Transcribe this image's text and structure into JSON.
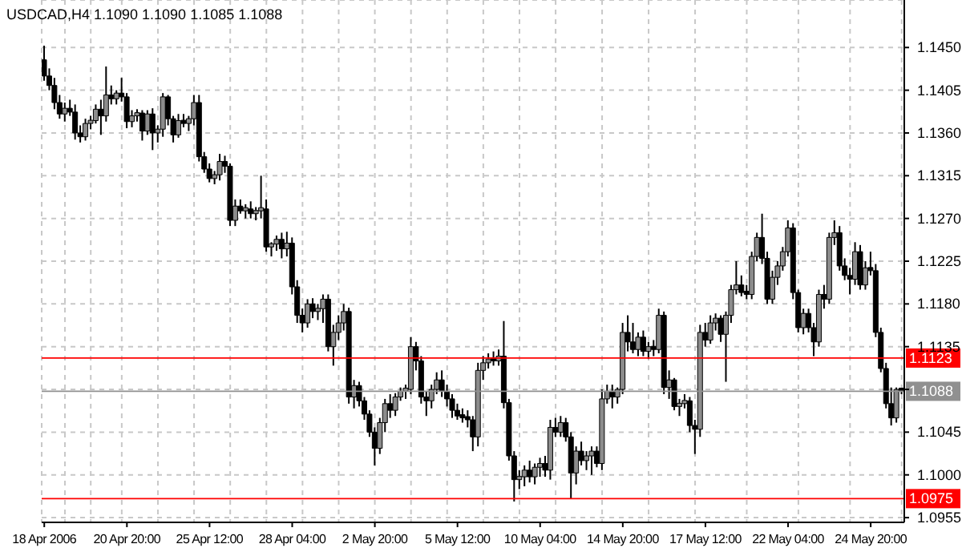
{
  "chart_data": {
    "type": "candlestick",
    "title": "USDCAD,H4 1.1090 1.1090 1.1085 1.1088",
    "categories": [
      "18 Apr 2006",
      null,
      null,
      null,
      null,
      null,
      null,
      null,
      null,
      null,
      null,
      null,
      null,
      null,
      null,
      null,
      "20 Apr 20:00",
      null,
      null,
      null,
      null,
      null,
      null,
      null,
      null,
      null,
      null,
      null,
      null,
      null,
      null,
      null,
      "25 Apr 12:00",
      null,
      null,
      null,
      null,
      null,
      null,
      null,
      null,
      null,
      null,
      null,
      null,
      null,
      null,
      null,
      "28 Apr 04:00",
      null,
      null,
      null,
      null,
      null,
      null,
      null,
      null,
      null,
      null,
      null,
      null,
      null,
      null,
      null,
      "2 May 20:00",
      null,
      null,
      null,
      null,
      null,
      null,
      null,
      null,
      null,
      null,
      null,
      null,
      null,
      null,
      null,
      "5 May 12:00",
      null,
      null,
      null,
      null,
      null,
      null,
      null,
      null,
      null,
      null,
      null,
      null,
      null,
      null,
      null,
      "10 May 04:00",
      null,
      null,
      null,
      null,
      null,
      null,
      null,
      null,
      null,
      null,
      null,
      null,
      null,
      null,
      null,
      "14 May 20:00",
      null,
      null,
      null,
      null,
      null,
      null,
      null,
      null,
      null,
      null,
      null,
      null,
      null,
      null,
      null,
      "17 May 12:00",
      null,
      null,
      null,
      null,
      null,
      null,
      null,
      null,
      null,
      null,
      null,
      null,
      null,
      null,
      null,
      "22 May 04:00",
      null,
      null,
      null,
      null,
      null,
      null,
      null,
      null,
      null,
      null,
      null,
      null,
      null,
      null,
      null,
      "24 May 20:00",
      null,
      null,
      null,
      null,
      null,
      null
    ],
    "ohlc": [
      [
        1.1437,
        1.1452,
        1.1415,
        1.142
      ],
      [
        1.142,
        1.1428,
        1.1405,
        1.141
      ],
      [
        1.141,
        1.1418,
        1.1385,
        1.1392
      ],
      [
        1.1392,
        1.14,
        1.1375,
        1.138
      ],
      [
        1.138,
        1.1392,
        1.1372,
        1.1386
      ],
      [
        1.1386,
        1.1395,
        1.1378,
        1.1382
      ],
      [
        1.1382,
        1.139,
        1.1353,
        1.136
      ],
      [
        1.136,
        1.1368,
        1.135,
        1.1356
      ],
      [
        1.1356,
        1.1375,
        1.1352,
        1.137
      ],
      [
        1.137,
        1.1378,
        1.1364,
        1.1373
      ],
      [
        1.1373,
        1.139,
        1.137,
        1.1385
      ],
      [
        1.1385,
        1.1395,
        1.1358,
        1.1378
      ],
      [
        1.1378,
        1.143,
        1.1372,
        1.14
      ],
      [
        1.14,
        1.141,
        1.139,
        1.1396
      ],
      [
        1.1396,
        1.1405,
        1.139,
        1.1402
      ],
      [
        1.1402,
        1.1418,
        1.1393,
        1.1398
      ],
      [
        1.1398,
        1.1402,
        1.1365,
        1.1372
      ],
      [
        1.1372,
        1.1384,
        1.1366,
        1.1378
      ],
      [
        1.1378,
        1.1385,
        1.1372,
        1.1381
      ],
      [
        1.1381,
        1.1384,
        1.1352,
        1.1362
      ],
      [
        1.1362,
        1.1384,
        1.1358,
        1.138
      ],
      [
        1.138,
        1.1386,
        1.1342,
        1.136
      ],
      [
        1.136,
        1.1368,
        1.135,
        1.1364
      ],
      [
        1.1364,
        1.1402,
        1.1356,
        1.1398
      ],
      [
        1.1398,
        1.14,
        1.1368,
        1.1375
      ],
      [
        1.1375,
        1.1378,
        1.135,
        1.1358
      ],
      [
        1.1358,
        1.138,
        1.1355,
        1.1373
      ],
      [
        1.1373,
        1.138,
        1.1366,
        1.137
      ],
      [
        1.137,
        1.1378,
        1.1362,
        1.1375
      ],
      [
        1.1375,
        1.14,
        1.1368,
        1.1392
      ],
      [
        1.1392,
        1.14,
        1.133,
        1.1335
      ],
      [
        1.1335,
        1.134,
        1.1318,
        1.1322
      ],
      [
        1.1322,
        1.1328,
        1.1308,
        1.1312
      ],
      [
        1.1312,
        1.132,
        1.1306,
        1.1316
      ],
      [
        1.1316,
        1.1338,
        1.131,
        1.133
      ],
      [
        1.133,
        1.1336,
        1.1318,
        1.1325
      ],
      [
        1.1325,
        1.1328,
        1.1262,
        1.1268
      ],
      [
        1.1268,
        1.129,
        1.1262,
        1.1283
      ],
      [
        1.1283,
        1.129,
        1.1275,
        1.1278
      ],
      [
        1.1278,
        1.1285,
        1.127,
        1.128
      ],
      [
        1.128,
        1.1288,
        1.127,
        1.1275
      ],
      [
        1.1275,
        1.1282,
        1.1268,
        1.1278
      ],
      [
        1.1278,
        1.1315,
        1.127,
        1.128
      ],
      [
        1.128,
        1.129,
        1.1235,
        1.124
      ],
      [
        1.124,
        1.1245,
        1.123,
        1.1243
      ],
      [
        1.1243,
        1.1252,
        1.1236,
        1.1248
      ],
      [
        1.1248,
        1.1255,
        1.1228,
        1.1238
      ],
      [
        1.1238,
        1.1256,
        1.123,
        1.1244
      ],
      [
        1.1244,
        1.125,
        1.119,
        1.1198
      ],
      [
        1.1198,
        1.1205,
        1.116,
        1.1168
      ],
      [
        1.1168,
        1.1175,
        1.115,
        1.116
      ],
      [
        1.116,
        1.1185,
        1.1155,
        1.118
      ],
      [
        1.118,
        1.1186,
        1.1165,
        1.1172
      ],
      [
        1.1172,
        1.118,
        1.1163,
        1.1175
      ],
      [
        1.1175,
        1.119,
        1.116,
        1.1185
      ],
      [
        1.1185,
        1.119,
        1.113,
        1.1135
      ],
      [
        1.1135,
        1.1158,
        1.1115,
        1.115
      ],
      [
        1.115,
        1.1168,
        1.1142,
        1.116
      ],
      [
        1.116,
        1.118,
        1.1152,
        1.1172
      ],
      [
        1.1172,
        1.1176,
        1.1075,
        1.1082
      ],
      [
        1.1082,
        1.11,
        1.107,
        1.1094
      ],
      [
        1.1094,
        1.1098,
        1.1072,
        1.1078
      ],
      [
        1.1078,
        1.1082,
        1.1058,
        1.1064
      ],
      [
        1.1064,
        1.1068,
        1.104,
        1.1045
      ],
      [
        1.1045,
        1.105,
        1.101,
        1.1028
      ],
      [
        1.1028,
        1.106,
        1.1022,
        1.1055
      ],
      [
        1.1055,
        1.108,
        1.1045,
        1.1075
      ],
      [
        1.1075,
        1.1085,
        1.106,
        1.1068
      ],
      [
        1.1068,
        1.1086,
        1.1062,
        1.1082
      ],
      [
        1.1082,
        1.1092,
        1.1078,
        1.1088
      ],
      [
        1.1088,
        1.1095,
        1.108,
        1.109
      ],
      [
        1.109,
        1.1145,
        1.1085,
        1.1135
      ],
      [
        1.1135,
        1.114,
        1.111,
        1.112
      ],
      [
        1.112,
        1.1125,
        1.1075,
        1.1082
      ],
      [
        1.1082,
        1.1088,
        1.1062,
        1.1078
      ],
      [
        1.1078,
        1.1095,
        1.107,
        1.109
      ],
      [
        1.109,
        1.1108,
        1.1085,
        1.11
      ],
      [
        1.11,
        1.111,
        1.1082,
        1.1088
      ],
      [
        1.1088,
        1.1095,
        1.1072,
        1.108
      ],
      [
        1.108,
        1.1085,
        1.106,
        1.1068
      ],
      [
        1.1068,
        1.1075,
        1.1058,
        1.1062
      ],
      [
        1.1062,
        1.107,
        1.1055,
        1.106
      ],
      [
        1.106,
        1.1068,
        1.105,
        1.1058
      ],
      [
        1.1058,
        1.1062,
        1.1025,
        1.104
      ],
      [
        1.104,
        1.1118,
        1.103,
        1.111
      ],
      [
        1.111,
        1.1125,
        1.11,
        1.1118
      ],
      [
        1.1118,
        1.1128,
        1.1112,
        1.1122
      ],
      [
        1.1122,
        1.113,
        1.1115,
        1.112
      ],
      [
        1.112,
        1.1132,
        1.1115,
        1.1125
      ],
      [
        1.1125,
        1.1162,
        1.107,
        1.1076
      ],
      [
        1.1076,
        1.108,
        1.1015,
        1.102
      ],
      [
        1.102,
        1.1025,
        1.0972,
        1.0995
      ],
      [
        1.0995,
        1.1005,
        1.0985,
        1.0998
      ],
      [
        1.0998,
        1.101,
        1.0988,
        1.1005
      ],
      [
        1.1005,
        1.1015,
        1.0992,
        1.0998
      ],
      [
        1.0998,
        1.1012,
        1.099,
        1.1008
      ],
      [
        1.1008,
        1.1018,
        1.0998,
        1.1012
      ],
      [
        1.1012,
        1.102,
        1.0998,
        1.1005
      ],
      [
        1.1005,
        1.1058,
        1.0995,
        1.105
      ],
      [
        1.105,
        1.106,
        1.104,
        1.1045
      ],
      [
        1.1045,
        1.1062,
        1.104,
        1.1055
      ],
      [
        1.1055,
        1.106,
        1.1035,
        1.104
      ],
      [
        1.104,
        1.1045,
        1.0975,
        1.1002
      ],
      [
        1.1002,
        1.103,
        1.099,
        1.1025
      ],
      [
        1.1025,
        1.1035,
        1.101,
        1.1015
      ],
      [
        1.1015,
        1.1025,
        1.1005,
        1.102
      ],
      [
        1.102,
        1.103,
        1.1,
        1.1025
      ],
      [
        1.1025,
        1.103,
        1.1008,
        1.1012
      ],
      [
        1.1012,
        1.109,
        1.1005,
        1.108
      ],
      [
        1.108,
        1.1095,
        1.1075,
        1.1088
      ],
      [
        1.1088,
        1.1095,
        1.107,
        1.1082
      ],
      [
        1.1082,
        1.1092,
        1.1075,
        1.109
      ],
      [
        1.109,
        1.116,
        1.1085,
        1.115
      ],
      [
        1.115,
        1.1168,
        1.113,
        1.114
      ],
      [
        1.114,
        1.116,
        1.1128,
        1.1132
      ],
      [
        1.1132,
        1.115,
        1.1125,
        1.1145
      ],
      [
        1.1145,
        1.1152,
        1.1125,
        1.113
      ],
      [
        1.113,
        1.114,
        1.1122,
        1.1135
      ],
      [
        1.1135,
        1.1142,
        1.1125,
        1.1132
      ],
      [
        1.1132,
        1.1175,
        1.1128,
        1.1168
      ],
      [
        1.1168,
        1.1172,
        1.1085,
        1.1092
      ],
      [
        1.1092,
        1.111,
        1.108,
        1.11
      ],
      [
        1.11,
        1.1102,
        1.1068,
        1.1072
      ],
      [
        1.1072,
        1.108,
        1.1062,
        1.1075
      ],
      [
        1.1075,
        1.1085,
        1.107,
        1.1078
      ],
      [
        1.1078,
        1.1082,
        1.1045,
        1.1052
      ],
      [
        1.1052,
        1.1058,
        1.1022,
        1.1048
      ],
      [
        1.1048,
        1.1158,
        1.104,
        1.115
      ],
      [
        1.115,
        1.116,
        1.1135,
        1.1142
      ],
      [
        1.1142,
        1.1168,
        1.1138,
        1.116
      ],
      [
        1.116,
        1.117,
        1.1152,
        1.1165
      ],
      [
        1.1165,
        1.1168,
        1.114,
        1.1148
      ],
      [
        1.1148,
        1.1172,
        1.1098,
        1.1168
      ],
      [
        1.1168,
        1.12,
        1.116,
        1.1195
      ],
      [
        1.1195,
        1.1225,
        1.119,
        1.12
      ],
      [
        1.12,
        1.121,
        1.1188,
        1.1192
      ],
      [
        1.1192,
        1.12,
        1.1185,
        1.119
      ],
      [
        1.119,
        1.1235,
        1.1185,
        1.123
      ],
      [
        1.123,
        1.1255,
        1.1225,
        1.125
      ],
      [
        1.125,
        1.1275,
        1.1222,
        1.1228
      ],
      [
        1.1228,
        1.1235,
        1.118,
        1.1185
      ],
      [
        1.1185,
        1.1215,
        1.118,
        1.1208
      ],
      [
        1.1208,
        1.1225,
        1.12,
        1.122
      ],
      [
        1.122,
        1.124,
        1.1215,
        1.1235
      ],
      [
        1.1235,
        1.1268,
        1.123,
        1.126
      ],
      [
        1.126,
        1.1265,
        1.1185,
        1.1192
      ],
      [
        1.1192,
        1.1195,
        1.115,
        1.1155
      ],
      [
        1.1155,
        1.1175,
        1.1148,
        1.117
      ],
      [
        1.117,
        1.1175,
        1.115,
        1.1155
      ],
      [
        1.1155,
        1.116,
        1.1125,
        1.114
      ],
      [
        1.114,
        1.1195,
        1.1135,
        1.119
      ],
      [
        1.119,
        1.12,
        1.1175,
        1.1185
      ],
      [
        1.1185,
        1.1255,
        1.118,
        1.125
      ],
      [
        1.125,
        1.1268,
        1.1242,
        1.1255
      ],
      [
        1.1255,
        1.1262,
        1.1215,
        1.122
      ],
      [
        1.122,
        1.1228,
        1.1205,
        1.121
      ],
      [
        1.121,
        1.1218,
        1.119,
        1.1206
      ],
      [
        1.1206,
        1.1245,
        1.12,
        1.1235
      ],
      [
        1.1235,
        1.1242,
        1.1195,
        1.12
      ],
      [
        1.12,
        1.1225,
        1.1195,
        1.1218
      ],
      [
        1.1218,
        1.1235,
        1.121,
        1.1215
      ],
      [
        1.1215,
        1.1222,
        1.1145,
        1.115
      ],
      [
        1.115,
        1.1155,
        1.1108,
        1.1112
      ],
      [
        1.1112,
        1.1118,
        1.107,
        1.1075
      ],
      [
        1.1075,
        1.1092,
        1.1052,
        1.106
      ],
      [
        1.106,
        1.1092,
        1.1055,
        1.109
      ],
      [
        1.109,
        1.109,
        1.1085,
        1.1088
      ]
    ],
    "ylim": [
      1.095,
      1.15
    ],
    "yticks": [
      {
        "value": 1.145,
        "label": "1.1450"
      },
      {
        "value": 1.1405,
        "label": "1.1405"
      },
      {
        "value": 1.136,
        "label": "1.1360"
      },
      {
        "value": 1.1315,
        "label": "1.1315"
      },
      {
        "value": 1.127,
        "label": "1.1270"
      },
      {
        "value": 1.1225,
        "label": "1.1225"
      },
      {
        "value": 1.118,
        "label": "1.1180"
      },
      {
        "value": 1.1135,
        "label": "1.1135"
      },
      {
        "value": 1.109,
        "label": null
      },
      {
        "value": 1.1045,
        "label": "1.1045"
      },
      {
        "value": 1.1,
        "label": "1.1000"
      },
      {
        "value": 1.0955,
        "label": "1.0955"
      }
    ],
    "ref_lines": [
      {
        "axis": "y",
        "value": 1.1123,
        "label": "1.1123",
        "color": "#ff0000"
      },
      {
        "axis": "y",
        "value": 1.0975,
        "label": "1.0975",
        "color": "#ff0000"
      },
      {
        "axis": "y",
        "value": 1.1088,
        "label": "1.1088",
        "color": "#909090"
      }
    ],
    "grid": true,
    "legend": false
  }
}
